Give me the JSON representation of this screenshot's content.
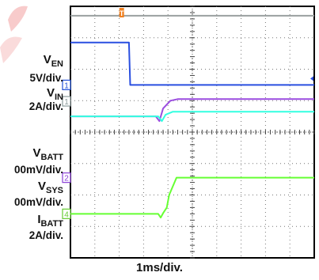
{
  "chart_data": {
    "type": "line",
    "title": "",
    "xlabel": "1ms/div.",
    "x_divisions": 10,
    "y_divisions": 8,
    "trigger_marker": "T",
    "channel_labels": [
      {
        "name": "V",
        "sub": "EN",
        "scale": "5V/div.",
        "marker": "1",
        "color": "#1f4fd6"
      },
      {
        "name": "V",
        "sub": "IN",
        "scale": "2A/div.",
        "marker": "1",
        "color": "#9aa8a8"
      },
      {
        "name": "V",
        "sub": "BATT",
        "scale": "00mV/div.",
        "marker": "",
        "color": "#8a3fd6"
      },
      {
        "name": "V",
        "sub": "SYS",
        "scale": "00mV/div.",
        "marker": "2",
        "color": "#8a3fd6"
      },
      {
        "name": "I",
        "sub": "BATT",
        "scale": "2A/div.",
        "marker": "4",
        "color": "#66ff33"
      }
    ],
    "series": [
      {
        "color": "#9aa0a0",
        "x": [
          0,
          10
        ],
        "y": [
          7.7,
          7.7
        ]
      },
      {
        "color": "#2a4fe0",
        "x": [
          0,
          2.4,
          2.45,
          10
        ],
        "y": [
          6.85,
          6.85,
          5.5,
          5.5
        ]
      },
      {
        "color": "#9b4de0",
        "x": [
          0,
          3.5,
          3.65,
          3.8,
          4.1,
          4.4,
          10
        ],
        "y": [
          4.5,
          4.5,
          4.35,
          4.75,
          5.0,
          5.05,
          5.05
        ]
      },
      {
        "color": "#33ffe0",
        "x": [
          0,
          3.6,
          3.75,
          3.9,
          4.2,
          10
        ],
        "y": [
          4.5,
          4.5,
          4.35,
          4.55,
          4.65,
          4.65
        ]
      },
      {
        "color": "#66ff33",
        "x": [
          0,
          3.6,
          3.7,
          3.8,
          3.95,
          4.05,
          4.35,
          10
        ],
        "y": [
          1.4,
          1.4,
          1.28,
          1.42,
          1.6,
          2.0,
          2.55,
          2.55
        ]
      }
    ]
  }
}
